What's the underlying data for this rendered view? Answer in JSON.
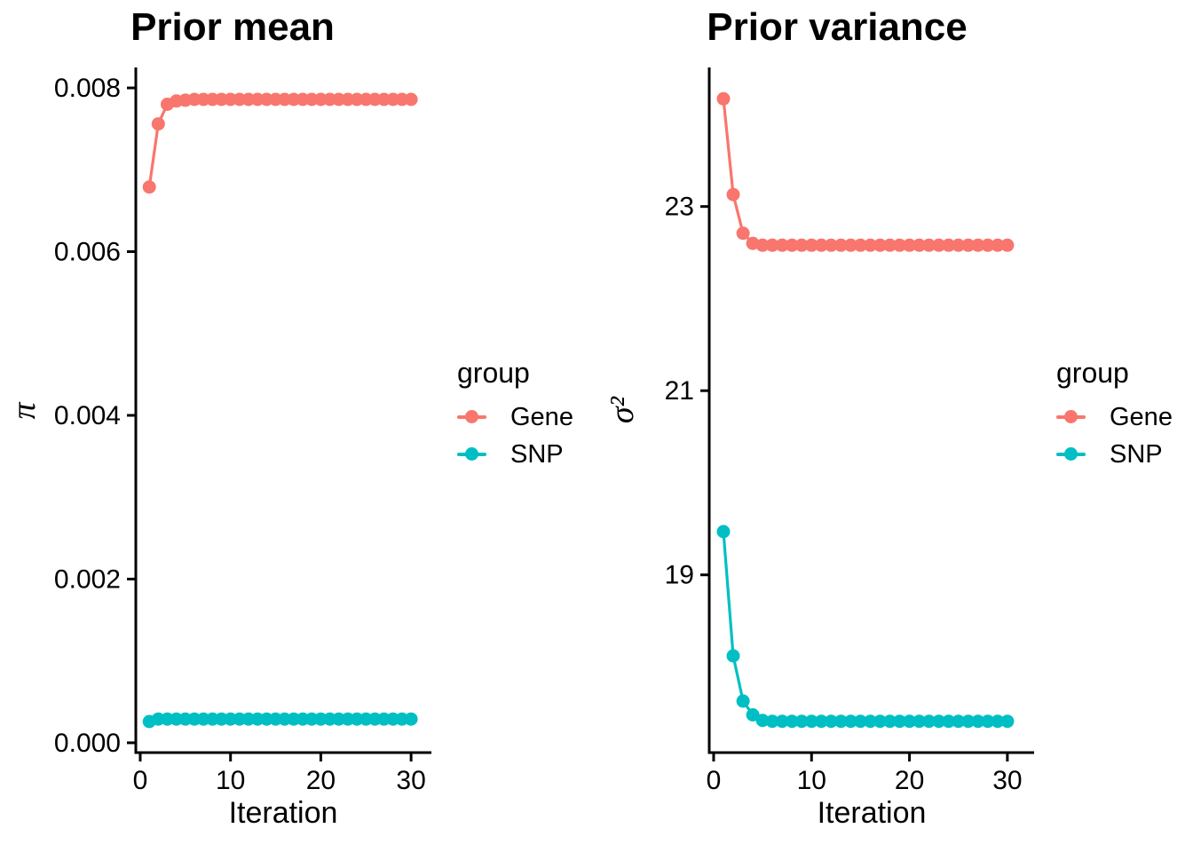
{
  "figure": {
    "background": "#FFFFFF"
  },
  "colors": {
    "gene": "#F8766D",
    "snp": "#00BFC4",
    "axis": "#000000",
    "text": "#000000"
  },
  "legend": {
    "title": "group",
    "entries": [
      {
        "label": "Gene",
        "color_key": "gene"
      },
      {
        "label": "SNP",
        "color_key": "snp"
      }
    ]
  },
  "chart_data": [
    {
      "type": "line",
      "title": "Prior mean",
      "xlabel": "Iteration",
      "ylabel": "π",
      "legend_position": "right",
      "grid": false,
      "x_ticks": [
        0,
        10,
        20,
        30
      ],
      "x_tick_labels": [
        "0",
        "10",
        "20",
        "30"
      ],
      "y_ticks": [
        0.0,
        0.002,
        0.004,
        0.006,
        0.008
      ],
      "y_tick_labels": [
        "0.000",
        "0.002",
        "0.004",
        "0.006",
        "0.008"
      ],
      "xlim": [
        -0.49,
        32.25
      ],
      "ylim": [
        -0.00012,
        0.00825
      ],
      "x": [
        1,
        2,
        3,
        4,
        5,
        6,
        7,
        8,
        9,
        10,
        11,
        12,
        13,
        14,
        15,
        16,
        17,
        18,
        19,
        20,
        21,
        22,
        23,
        24,
        25,
        26,
        27,
        28,
        29,
        30
      ],
      "series": [
        {
          "name": "Gene",
          "color": "#F8766D",
          "values": [
            0.00679,
            0.00756,
            0.0078,
            0.00784,
            0.00785,
            0.00786,
            0.00786,
            0.00786,
            0.00786,
            0.00786,
            0.00786,
            0.00786,
            0.00786,
            0.00786,
            0.00786,
            0.00786,
            0.00786,
            0.00786,
            0.00786,
            0.00786,
            0.00786,
            0.00786,
            0.00786,
            0.00786,
            0.00786,
            0.00786,
            0.00786,
            0.00786,
            0.00786,
            0.00786
          ]
        },
        {
          "name": "SNP",
          "color": "#00BFC4",
          "values": [
            0.00026,
            0.00029,
            0.00029,
            0.00029,
            0.00029,
            0.00029,
            0.00029,
            0.00029,
            0.00029,
            0.00029,
            0.00029,
            0.00029,
            0.00029,
            0.00029,
            0.00029,
            0.00029,
            0.00029,
            0.00029,
            0.00029,
            0.00029,
            0.00029,
            0.00029,
            0.00029,
            0.00029,
            0.00029,
            0.00029,
            0.00029,
            0.00029,
            0.00029,
            0.00029
          ]
        }
      ]
    },
    {
      "type": "line",
      "title": "Prior variance",
      "xlabel": "Iteration",
      "ylabel": "σ²",
      "legend_position": "right",
      "grid": false,
      "x_ticks": [
        0,
        10,
        20,
        30
      ],
      "x_tick_labels": [
        "0",
        "10",
        "20",
        "30"
      ],
      "y_ticks": [
        19,
        21,
        23
      ],
      "y_tick_labels": [
        "19",
        "21",
        "23"
      ],
      "xlim": [
        -0.45,
        32.73
      ],
      "ylim": [
        17.07,
        24.51
      ],
      "x": [
        1,
        2,
        3,
        4,
        5,
        6,
        7,
        8,
        9,
        10,
        11,
        12,
        13,
        14,
        15,
        16,
        17,
        18,
        19,
        20,
        21,
        22,
        23,
        24,
        25,
        26,
        27,
        28,
        29,
        30
      ],
      "series": [
        {
          "name": "Gene",
          "color": "#F8766D",
          "values": [
            24.17,
            23.13,
            22.71,
            22.6,
            22.58,
            22.58,
            22.58,
            22.58,
            22.58,
            22.58,
            22.58,
            22.58,
            22.58,
            22.58,
            22.58,
            22.58,
            22.58,
            22.58,
            22.58,
            22.58,
            22.58,
            22.58,
            22.58,
            22.58,
            22.58,
            22.58,
            22.58,
            22.58,
            22.58,
            22.58
          ]
        },
        {
          "name": "SNP",
          "color": "#00BFC4",
          "values": [
            19.47,
            18.12,
            17.63,
            17.48,
            17.42,
            17.41,
            17.41,
            17.41,
            17.41,
            17.41,
            17.41,
            17.41,
            17.41,
            17.41,
            17.41,
            17.41,
            17.41,
            17.41,
            17.41,
            17.41,
            17.41,
            17.41,
            17.41,
            17.41,
            17.41,
            17.41,
            17.41,
            17.41,
            17.41,
            17.41
          ]
        }
      ]
    }
  ]
}
